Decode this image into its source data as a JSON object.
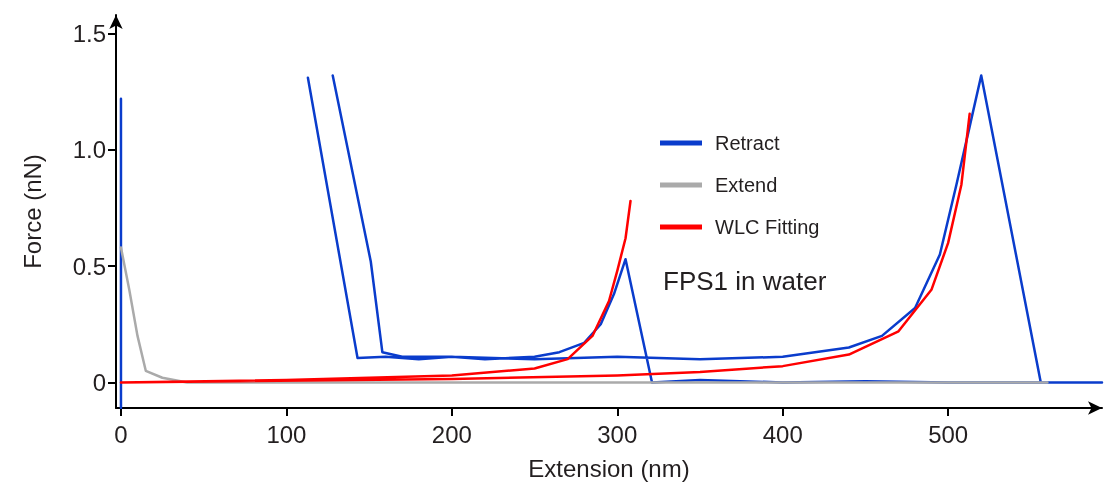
{
  "chart_data": {
    "type": "line",
    "xlabel": "Extension (nm)",
    "ylabel": "Force (nN)",
    "xlim": [
      -3,
      593
    ],
    "xticks": [
      0,
      100,
      200,
      300,
      400,
      500
    ],
    "ylim": [
      -0.11,
      1.58
    ],
    "yticks": [
      0,
      0.5,
      {
        "value": 1,
        "label": "1.0"
      },
      1.5
    ],
    "grid": false,
    "legend": "right",
    "marker": "none",
    "line_style": "solid",
    "annotations": [
      "FPS1 in water"
    ],
    "series": [
      {
        "name": "Retract",
        "color": "#0a3ccc",
        "x": [
          0,
          0,
          null,
          113,
          143,
          160,
          180,
          200,
          220,
          250,
          265,
          280,
          290,
          298,
          305,
          321,
          350,
          400,
          450,
          500,
          556,
          593,
          null,
          128,
          151,
          158,
          170,
          200,
          250,
          300,
          350,
          400,
          440,
          460,
          480,
          495,
          505,
          513,
          520,
          556,
          593
        ],
        "values": [
          1.22,
          -0.11,
          null,
          1.31,
          0.105,
          0.11,
          0.1,
          0.11,
          0.1,
          0.11,
          0.13,
          0.17,
          0.25,
          0.38,
          0.53,
          0,
          0.01,
          0,
          0.005,
          0,
          0,
          0,
          null,
          1.32,
          0.52,
          0.13,
          0.11,
          0.11,
          0.1,
          0.11,
          0.1,
          0.11,
          0.15,
          0.2,
          0.32,
          0.55,
          0.85,
          1.1,
          1.32,
          0,
          0
        ]
      },
      {
        "name": "Extend",
        "color": "#aaaaaa",
        "x": [
          0,
          5,
          10,
          15,
          25,
          40,
          100,
          200,
          300,
          400,
          500,
          560
        ],
        "values": [
          0.58,
          0.4,
          0.2,
          0.05,
          0.02,
          0,
          0,
          0,
          0,
          0,
          0,
          0
        ]
      },
      {
        "name": "WLC Fitting",
        "color": "#ff0000",
        "x": [
          0,
          100,
          200,
          250,
          270,
          285,
          295,
          300,
          305,
          308,
          null,
          0,
          200,
          300,
          350,
          400,
          440,
          470,
          490,
          500,
          508,
          513
        ],
        "values": [
          0,
          0.01,
          0.03,
          0.06,
          0.1,
          0.2,
          0.35,
          0.48,
          0.62,
          0.78,
          null,
          0,
          0.015,
          0.03,
          0.045,
          0.07,
          0.12,
          0.22,
          0.4,
          0.6,
          0.85,
          1.155
        ]
      }
    ]
  }
}
